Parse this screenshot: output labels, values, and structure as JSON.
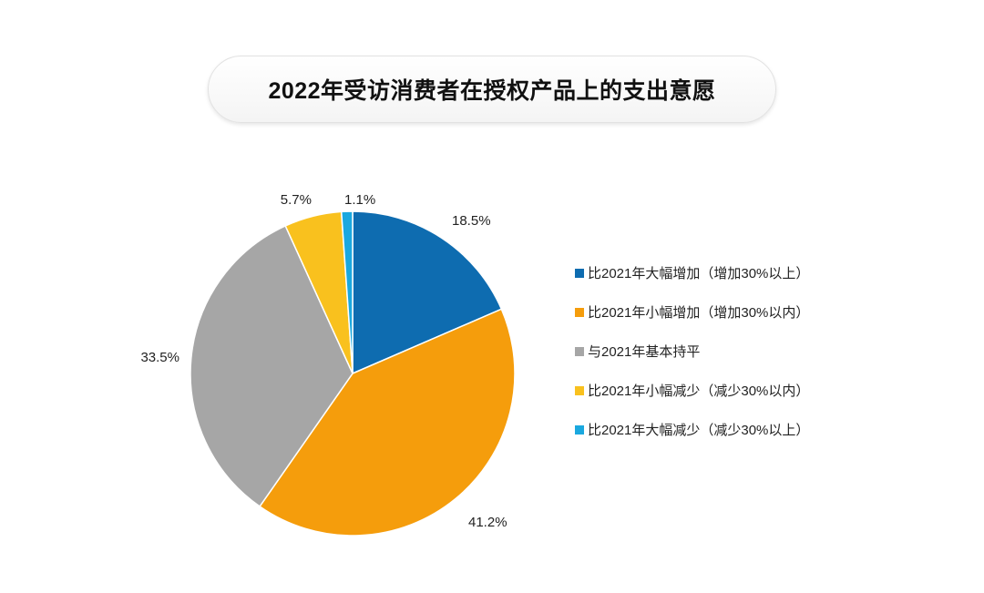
{
  "title": "2022年受访消费者在授权产品上的支出意愿",
  "chart_data": {
    "type": "pie",
    "title": "2022年受访消费者在授权产品上的支出意愿",
    "legend_position": "right",
    "slices": [
      {
        "name": "比2021年大幅增加（增加30%以上）",
        "value": 18.5,
        "label": "18.5%",
        "color": "#0E6CB0"
      },
      {
        "name": "比2021年小幅增加（增加30%以内）",
        "value": 41.2,
        "label": "41.2%",
        "color": "#F59D0C"
      },
      {
        "name": "与2021年基本持平",
        "value": 33.5,
        "label": "33.5%",
        "color": "#A6A6A6"
      },
      {
        "name": "比2021年小幅减少（减少30%以内）",
        "value": 5.7,
        "label": "5.7%",
        "color": "#F9C11E"
      },
      {
        "name": "比2021年大幅减少（减少30%以上）",
        "value": 1.1,
        "label": "1.1%",
        "color": "#1AA8DF"
      }
    ]
  }
}
